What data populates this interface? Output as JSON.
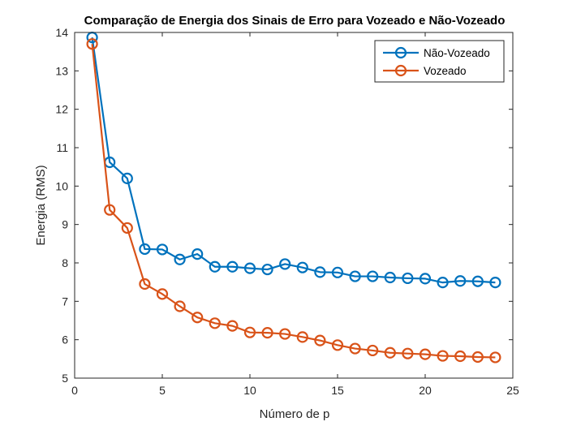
{
  "chart_data": {
    "type": "line",
    "title": "Comparação de Energia dos Sinais de Erro para Vozeado e Não-Vozeado",
    "xlabel": "Número de p",
    "ylabel": "Energia (RMS)",
    "xlim": [
      0,
      25
    ],
    "ylim": [
      5,
      14
    ],
    "xticks": [
      0,
      5,
      10,
      15,
      20,
      25
    ],
    "yticks": [
      5,
      6,
      7,
      8,
      9,
      10,
      11,
      12,
      13,
      14
    ],
    "grid": false,
    "legend_location": "top-right",
    "x": [
      1,
      2,
      3,
      4,
      5,
      6,
      7,
      8,
      9,
      10,
      11,
      12,
      13,
      14,
      15,
      16,
      17,
      18,
      19,
      20,
      21,
      22,
      23,
      24
    ],
    "series": [
      {
        "name": "Não-Vozeado",
        "color": "#0072BD",
        "marker": "circle",
        "values": [
          13.87,
          10.62,
          10.2,
          8.36,
          8.35,
          8.09,
          8.23,
          7.9,
          7.9,
          7.86,
          7.83,
          7.97,
          7.88,
          7.76,
          7.75,
          7.65,
          7.65,
          7.62,
          7.6,
          7.59,
          7.49,
          7.53,
          7.52,
          7.49
        ]
      },
      {
        "name": "Vozeado",
        "color": "#D95319",
        "marker": "circle",
        "values": [
          13.7,
          9.38,
          8.91,
          7.45,
          7.19,
          6.87,
          6.58,
          6.43,
          6.36,
          6.19,
          6.18,
          6.15,
          6.07,
          5.98,
          5.86,
          5.77,
          5.72,
          5.66,
          5.64,
          5.62,
          5.58,
          5.57,
          5.55,
          5.54
        ]
      }
    ]
  }
}
